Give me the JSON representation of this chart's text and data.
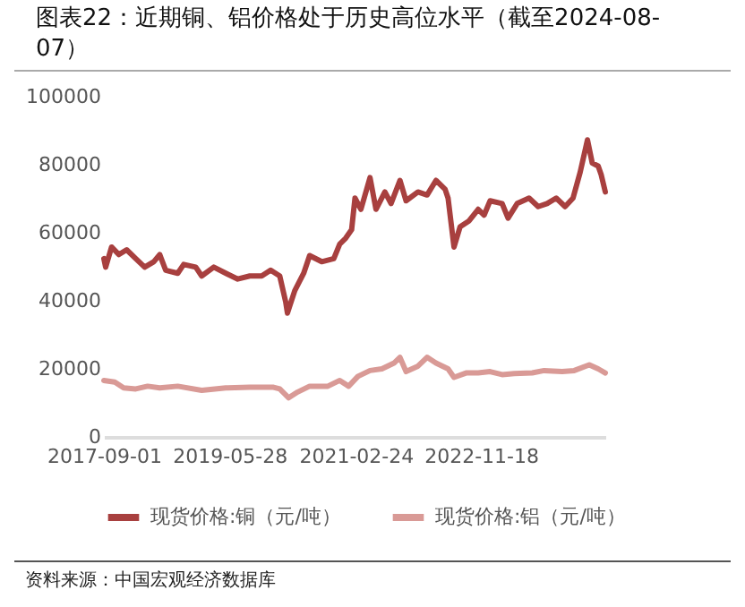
{
  "chart_data": {
    "type": "line",
    "title": "图表22：近期铜、铝价格处于历史高位水平（截至2024-08-07）",
    "annotations": [
      "资料来源：中国宏观经济数据库"
    ],
    "xlim": [
      "2017-09-01",
      "2024-08-07"
    ],
    "xticks": [
      "2017-09-01",
      "2019-05-28",
      "2021-02-24",
      "2022-11-18"
    ],
    "ylim": [
      0,
      100000
    ],
    "yticks": [
      0,
      20000,
      40000,
      60000,
      80000,
      100000
    ],
    "grid": false,
    "legend": "bottom",
    "line_style": "solid",
    "series": [
      {
        "name": "现货价格:铜（元/吨）",
        "color": "#a8403f",
        "x": [
          "2017-09-01",
          "2017-09-10",
          "2017-10-10",
          "2017-11-16",
          "2017-12-25",
          "2018-02-09",
          "2018-03-26",
          "2018-05-11",
          "2018-06-10",
          "2018-07-10",
          "2018-09-09",
          "2018-10-09",
          "2018-12-09",
          "2019-01-08",
          "2019-03-10",
          "2019-05-10",
          "2019-07-09",
          "2019-09-08",
          "2019-11-07",
          "2019-12-22",
          "2020-02-06",
          "2020-03-07",
          "2020-03-16",
          "2020-04-22",
          "2020-06-06",
          "2020-07-06",
          "2020-09-05",
          "2020-11-05",
          "2020-12-05",
          "2021-01-04",
          "2021-02-03",
          "2021-02-20",
          "2021-03-22",
          "2021-05-07",
          "2021-06-06",
          "2021-07-21",
          "2021-08-21",
          "2021-10-05",
          "2021-11-05",
          "2022-01-04",
          "2022-02-19",
          "2022-04-05",
          "2022-05-21",
          "2022-06-05",
          "2022-07-05",
          "2022-08-05",
          "2022-09-19",
          "2022-11-04",
          "2022-12-04",
          "2023-01-03",
          "2023-03-05",
          "2023-04-04",
          "2023-05-20",
          "2023-07-19",
          "2023-09-03",
          "2023-10-18",
          "2023-12-03",
          "2024-01-17",
          "2024-02-26",
          "2024-04-02",
          "2024-05-09",
          "2024-06-02",
          "2024-07-02",
          "2024-07-17",
          "2024-08-07"
        ],
        "values": [
          52400,
          49900,
          55800,
          53600,
          55000,
          52400,
          49900,
          51500,
          53600,
          49000,
          48100,
          50700,
          49900,
          47300,
          49900,
          48100,
          46400,
          47300,
          47300,
          49000,
          47300,
          39700,
          36400,
          43000,
          48100,
          53300,
          51500,
          52400,
          56700,
          58400,
          60900,
          70200,
          66900,
          76200,
          66900,
          72000,
          68600,
          75400,
          69400,
          72000,
          71100,
          75400,
          72800,
          70200,
          55800,
          61800,
          63500,
          66900,
          65200,
          69400,
          68600,
          64300,
          68600,
          70200,
          67700,
          68600,
          70200,
          67700,
          70200,
          77800,
          87300,
          80500,
          79600,
          77100,
          72000
        ]
      },
      {
        "name": "现货价格:铝（元/吨）",
        "color": "#d99a96",
        "x": [
          "2017-09-01",
          "2017-10-26",
          "2017-12-10",
          "2018-02-09",
          "2018-04-10",
          "2018-06-10",
          "2018-09-09",
          "2019-01-08",
          "2019-05-10",
          "2019-09-08",
          "2020-01-06",
          "2020-02-06",
          "2020-03-22",
          "2020-05-07",
          "2020-07-06",
          "2020-10-06",
          "2020-12-05",
          "2021-01-19",
          "2021-03-07",
          "2021-05-07",
          "2021-07-06",
          "2021-09-05",
          "2021-10-05",
          "2021-11-05",
          "2022-01-04",
          "2022-02-19",
          "2022-04-05",
          "2022-06-05",
          "2022-07-05",
          "2022-09-04",
          "2022-11-04",
          "2023-01-03",
          "2023-03-05",
          "2023-05-05",
          "2023-08-04",
          "2023-10-03",
          "2024-01-02",
          "2024-03-03",
          "2024-05-18",
          "2024-07-02",
          "2024-08-07"
        ],
        "values": [
          16600,
          16100,
          14400,
          14100,
          14900,
          14400,
          14900,
          13700,
          14400,
          14600,
          14600,
          14100,
          11500,
          13200,
          14900,
          14900,
          16600,
          14900,
          17800,
          19500,
          20000,
          21700,
          23400,
          19200,
          20800,
          23400,
          21700,
          20000,
          17500,
          18800,
          18800,
          19200,
          18300,
          18600,
          18800,
          19500,
          19200,
          19500,
          21200,
          20000,
          18800
        ]
      }
    ]
  }
}
